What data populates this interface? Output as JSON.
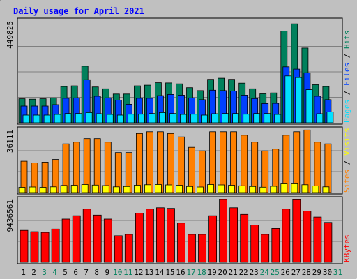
{
  "colors": {
    "background": "#c0c0c0",
    "hits": "#00805c",
    "files": "#0040ff",
    "pages": "#00e0ff",
    "visits": "#ffff00",
    "sites": "#ff8000",
    "kbytes": "#ff0000",
    "title": "#0000ff",
    "weekend_day": "#00805c",
    "weekday": "#000000"
  },
  "chart_data": {
    "type": "bar",
    "title": "Daily usage for April 2021",
    "x": {
      "days": [
        "1",
        "2",
        "3",
        "4",
        "5",
        "6",
        "7",
        "8",
        "9",
        "10",
        "11",
        "12",
        "13",
        "14",
        "15",
        "16",
        "17",
        "18",
        "19",
        "20",
        "21",
        "22",
        "23",
        "24",
        "25",
        "26",
        "27",
        "28",
        "29",
        "30",
        "31"
      ],
      "weekend_days": [
        "3",
        "4",
        "10",
        "11",
        "17",
        "18",
        "24",
        "25",
        "31"
      ]
    },
    "panels": [
      {
        "name": "pages_files_hits",
        "ymax_label": "449825",
        "ymax": 449825,
        "label_parts": [
          "Pages",
          "Files",
          "Hits"
        ],
        "series": [
          {
            "name": "Hits",
            "values": [
              106000,
              104000,
              106000,
              110000,
              160000,
              163000,
              250000,
              158000,
              150000,
              127000,
              127000,
              163000,
              166000,
              177000,
              176000,
              172000,
              155000,
              142000,
              192000,
              197000,
              192000,
              175000,
              150000,
              128000,
              132000,
              405000,
              437000,
              330000,
              168000,
              160000,
              0
            ]
          },
          {
            "name": "Files",
            "values": [
              74000,
              74000,
              74000,
              80000,
              108000,
              110000,
              190000,
              117000,
              110000,
              100000,
              82000,
              108000,
              108000,
              120000,
              125000,
              122000,
              110000,
              102000,
              144000,
              142000,
              140000,
              122000,
              107000,
              85000,
              86000,
              247000,
              237000,
              221000,
              117000,
              102000,
              0
            ]
          },
          {
            "name": "Pages",
            "values": [
              34000,
              34000,
              34000,
              37000,
              41000,
              41000,
              45000,
              40000,
              37000,
              34000,
              38000,
              38000,
              41000,
              45000,
              41000,
              37000,
              38000,
              34000,
              40000,
              41000,
              41000,
              38000,
              41000,
              41000,
              37000,
              207000,
              200000,
              146000,
              40000,
              48000,
              0
            ]
          }
        ]
      },
      {
        "name": "sites_visits",
        "ymax_label": "36111",
        "ymax": 36111,
        "label_parts": [
          "Sites",
          "Visits"
        ],
        "series": [
          {
            "name": "Sites",
            "values": [
              18000,
              17000,
              17500,
              19000,
              28000,
              29000,
              31000,
              31000,
              29000,
              23000,
              23000,
              34000,
              35000,
              35000,
              34000,
              32000,
              26000,
              24000,
              35000,
              35000,
              35000,
              33000,
              29000,
              24000,
              25000,
              33000,
              35000,
              36000,
              29000,
              28000,
              0
            ]
          },
          {
            "name": "Visits",
            "values": [
              3000,
              3200,
              3000,
              3300,
              4100,
              4200,
              4600,
              4300,
              4000,
              3300,
              3500,
              4200,
              4500,
              4600,
              4400,
              4200,
              3500,
              3200,
              4600,
              4400,
              4200,
              3900,
              3500,
              3100,
              3600,
              5000,
              5000,
              4500,
              3800,
              3300,
              0
            ]
          }
        ]
      },
      {
        "name": "kbytes",
        "ymax_label": "9436561",
        "ymax": 9436561,
        "label_parts": [
          "KBytes"
        ],
        "series": [
          {
            "name": "KBytes",
            "values": [
              4800000,
              4600000,
              4500000,
              5000000,
              6500000,
              7000000,
              8000000,
              7100000,
              6500000,
              4000000,
              4200000,
              7400000,
              8000000,
              8200000,
              8100000,
              5900000,
              4200000,
              4200000,
              7000000,
              9436561,
              8200000,
              7200000,
              5600000,
              4200000,
              5100000,
              8000000,
              9400000,
              7700000,
              6800000,
              6000000,
              0
            ]
          }
        ]
      }
    ]
  }
}
